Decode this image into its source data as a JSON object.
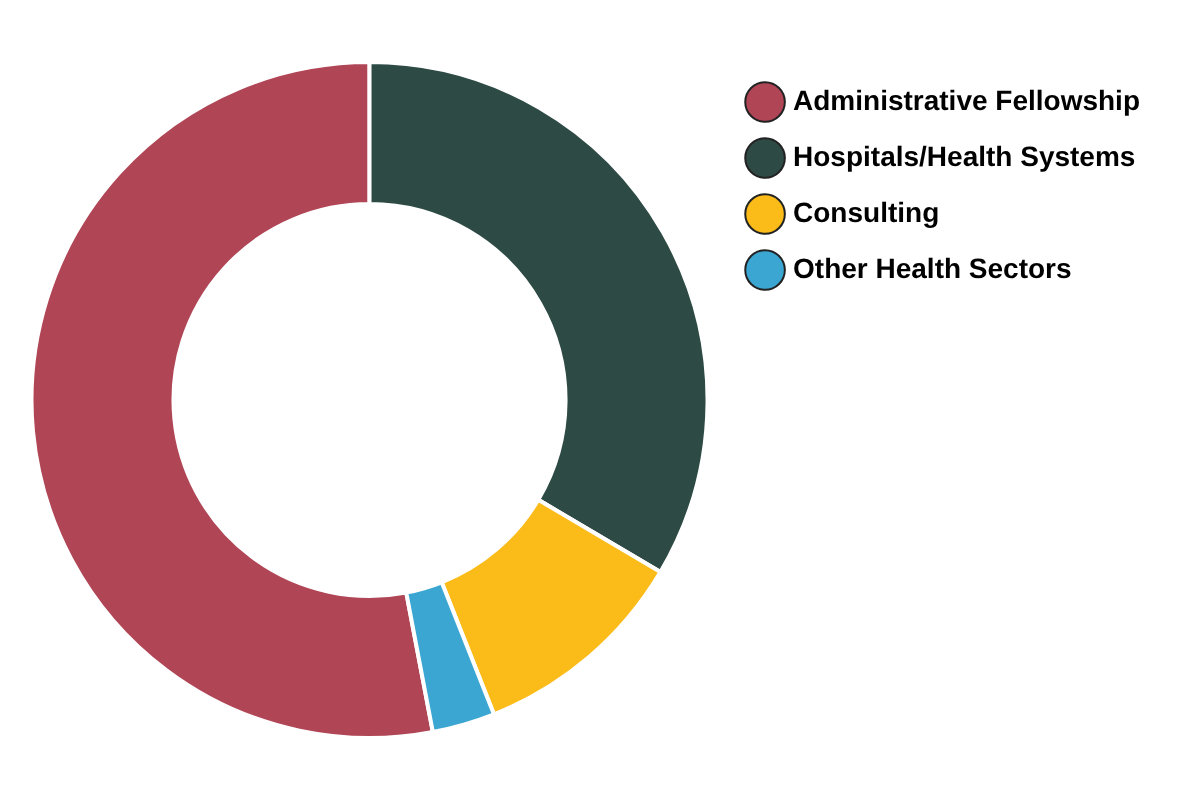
{
  "chart_data": {
    "type": "donut",
    "categories": [
      "Administrative Fellowship",
      "Hospitals/Health Systems",
      "Consulting",
      "Other Health Sectors"
    ],
    "values": [
      53,
      33.5,
      10.5,
      3
    ],
    "colors": [
      "#b04556",
      "#2d4a44",
      "#fbbc1a",
      "#3ca6d2"
    ],
    "legend": "right"
  }
}
